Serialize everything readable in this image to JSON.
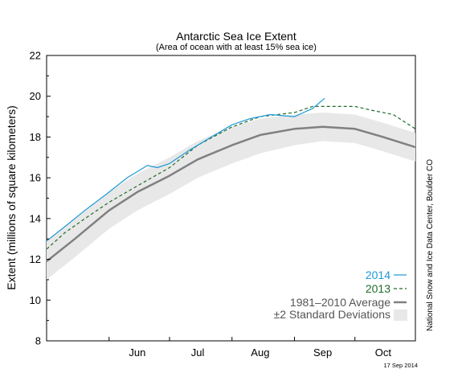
{
  "chart_data": {
    "type": "line",
    "title": "Antarctic Sea Ice Extent",
    "subtitle": "(Area of ocean with at least 15% sea ice)",
    "xlabel": "",
    "ylabel": "Extent (millions of square kilometers)",
    "ylim": [
      8,
      22
    ],
    "yticks": [
      8,
      10,
      12,
      14,
      16,
      18,
      20,
      22
    ],
    "xlim": [
      "2014-05-01",
      "2014-10-31"
    ],
    "month_labels": [
      {
        "label": "Jun",
        "date": "2014-06-15"
      },
      {
        "label": "Jul",
        "date": "2014-07-15"
      },
      {
        "label": "Aug",
        "date": "2014-08-15"
      },
      {
        "label": "Sep",
        "date": "2014-09-15"
      },
      {
        "label": "Oct",
        "date": "2014-10-15"
      }
    ],
    "grid": false,
    "legend_position": "bottom-right",
    "credit": "National Snow and Ice Data Center, Boulder CO",
    "date_stamp": "17 Sep 2014",
    "series": [
      {
        "name": "2014",
        "style": "solid",
        "color": "#1e9ad6",
        "x": [
          "2014-05-01",
          "2014-05-10",
          "2014-05-20",
          "2014-06-01",
          "2014-06-10",
          "2014-06-20",
          "2014-06-25",
          "2014-07-01",
          "2014-07-10",
          "2014-07-20",
          "2014-08-01",
          "2014-08-10",
          "2014-08-20",
          "2014-09-01",
          "2014-09-10",
          "2014-09-16"
        ],
        "y": [
          12.9,
          13.6,
          14.4,
          15.3,
          16.0,
          16.6,
          16.5,
          16.7,
          17.3,
          17.9,
          18.6,
          18.9,
          19.1,
          19.0,
          19.4,
          19.9
        ]
      },
      {
        "name": "2013",
        "style": "dashed",
        "color": "#1f6b2a",
        "x": [
          "2013-05-01",
          "2013-05-10",
          "2013-05-20",
          "2013-06-01",
          "2013-06-15",
          "2013-07-01",
          "2013-07-15",
          "2013-08-01",
          "2013-08-15",
          "2013-09-01",
          "2013-09-10",
          "2013-09-20",
          "2013-10-01",
          "2013-10-10",
          "2013-10-20",
          "2013-10-31"
        ],
        "y": [
          12.5,
          13.3,
          14.0,
          14.8,
          15.6,
          16.5,
          17.6,
          18.5,
          19.0,
          19.2,
          19.5,
          19.5,
          19.5,
          19.3,
          19.1,
          18.4
        ]
      },
      {
        "name": "1981–2010 Average",
        "style": "solid",
        "color": "#808080",
        "x": [
          "2014-05-01",
          "2014-05-15",
          "2014-06-01",
          "2014-06-15",
          "2014-07-01",
          "2014-07-15",
          "2014-08-01",
          "2014-08-15",
          "2014-09-01",
          "2014-09-15",
          "2014-10-01",
          "2014-10-15",
          "2014-10-31"
        ],
        "y": [
          11.9,
          13.0,
          14.4,
          15.3,
          16.1,
          16.9,
          17.6,
          18.1,
          18.4,
          18.5,
          18.4,
          18.0,
          17.5
        ]
      }
    ],
    "band": {
      "name": "±2 Standard Deviations",
      "color": "#e8e8e8",
      "x": [
        "2014-05-01",
        "2014-05-15",
        "2014-06-01",
        "2014-06-15",
        "2014-07-01",
        "2014-07-15",
        "2014-08-01",
        "2014-08-15",
        "2014-09-01",
        "2014-09-15",
        "2014-10-01",
        "2014-10-15",
        "2014-10-31"
      ],
      "upper": [
        12.9,
        14.0,
        15.3,
        16.2,
        17.0,
        17.8,
        18.5,
        18.9,
        19.1,
        19.2,
        19.1,
        18.7,
        18.2
      ],
      "lower": [
        11.0,
        12.1,
        13.5,
        14.4,
        15.2,
        16.0,
        16.7,
        17.2,
        17.6,
        17.8,
        17.7,
        17.3,
        16.8
      ]
    },
    "legend": [
      {
        "label": "2014",
        "color": "#1e9ad6",
        "kind": "solid"
      },
      {
        "label": "2013",
        "color": "#1f6b2a",
        "kind": "dashed"
      },
      {
        "label": "1981–2010 Average",
        "color": "#808080",
        "kind": "thick"
      },
      {
        "label": "±2 Standard Deviations",
        "color": "#e8e8e8",
        "kind": "box"
      }
    ]
  }
}
